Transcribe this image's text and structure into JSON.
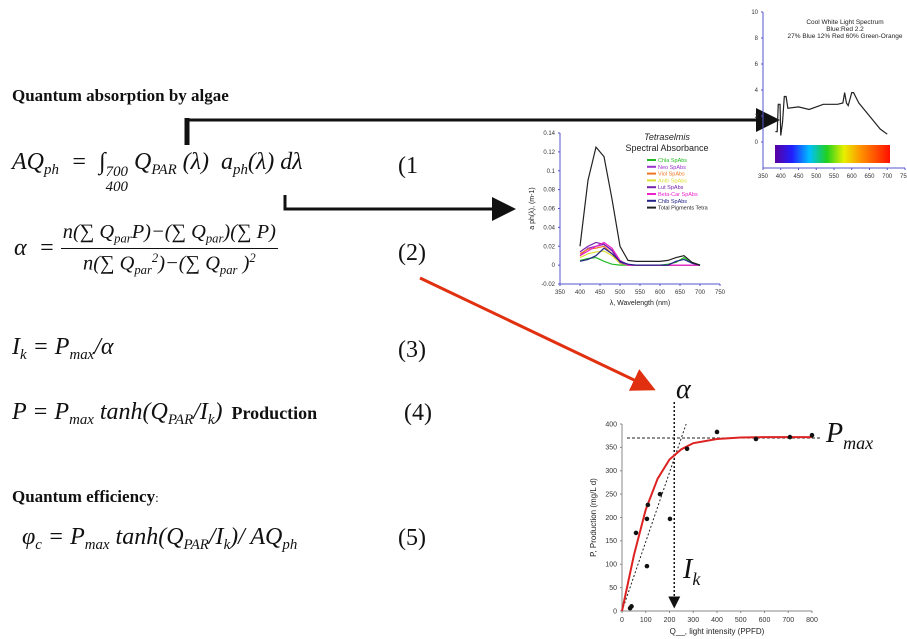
{
  "heading": "Quantum absorption by algae",
  "equations": [
    {
      "tokens": [
        "AQ",
        {
          "sub": "ph"
        },
        "  =  ∫",
        {
          "lim": {
            "sup": "700",
            "sub": "400"
          }
        },
        " Q",
        {
          "sub": "PAR"
        },
        " (λ)  a",
        {
          "sub": "ph"
        },
        "(λ) dλ"
      ],
      "label": "(1"
    },
    {
      "tokens": [
        "α  = "
      ],
      "numerator": [
        "n(∑ Q",
        {
          "sub": "par"
        },
        "P)−(∑ Q",
        {
          "sub": "par"
        },
        ")(∑ P)"
      ],
      "denominator": [
        "n(∑ Q",
        {
          "sub": "par"
        },
        {
          "sup": "2"
        },
        ")−(∑ Q",
        {
          "sub": "par"
        },
        " )",
        {
          "sup": "2"
        }
      ],
      "label": "(2)"
    },
    {
      "tokens": [
        "I",
        {
          "sub": "k"
        },
        " = P",
        {
          "sub": "max"
        },
        "/α"
      ],
      "label": "(3)"
    },
    {
      "tokens": [
        "P = P",
        {
          "sub": "max"
        },
        " tanh(Q",
        {
          "sub": "PAR"
        },
        "/I",
        {
          "sub": "k"
        },
        ")",
        {
          "bold": "  Production"
        }
      ],
      "label": "(4)"
    },
    {
      "tokens": [
        "φ",
        {
          "sub": "c"
        },
        " = P",
        {
          "sub": "max"
        },
        " tanh(Q",
        {
          "sub": "PAR"
        },
        "/I",
        {
          "sub": "k"
        },
        ")/ AQ",
        {
          "sub": "ph"
        }
      ],
      "label": "(5)"
    }
  ],
  "efficiency_heading": {
    "text": "Quantum efficiency",
    "suffix": ":"
  },
  "chart_data": [
    {
      "type": "line",
      "title": "Cool White Light Spectrum",
      "subtitle": [
        "Blue:Red 2.2",
        "27% Blue 12% Red   60% Green-Orange"
      ],
      "x": [
        385,
        390,
        393,
        398,
        400,
        405,
        410,
        415,
        420,
        450,
        480,
        520,
        560,
        575,
        580,
        585,
        590,
        600,
        605,
        620,
        650,
        680,
        700
      ],
      "series": [
        {
          "color": "#222222",
          "values": [
            0.8,
            0.8,
            2.9,
            2.9,
            0.5,
            1.5,
            3.5,
            3.5,
            2.6,
            2.7,
            2.5,
            2.9,
            2.9,
            3,
            3.8,
            3,
            2.8,
            3.8,
            3.8,
            3,
            2,
            1,
            0.6
          ]
        }
      ],
      "xlim": [
        350,
        750
      ],
      "xticks": [
        350,
        400,
        450,
        500,
        550,
        600,
        650,
        700,
        750
      ],
      "ylim": [
        -2,
        10
      ],
      "yticks": [
        0,
        2,
        4,
        6,
        8,
        10
      ],
      "axis_color": "#5555cc"
    },
    {
      "type": "line",
      "title": "Tetraselmis",
      "subtitle": "Spectral Absorbance",
      "xlabel": "λ, Wavelength (nm)",
      "ylabel": "a ph(λ), (m-1)",
      "x": [
        400,
        420,
        440,
        460,
        480,
        500,
        520,
        540,
        560,
        580,
        600,
        620,
        640,
        660,
        680,
        700
      ],
      "series": [
        {
          "name": "Chla SpAbs",
          "color": "#22bb22",
          "values": [
            0.005,
            0.007,
            0.008,
            0.004,
            0.001,
            0,
            0,
            0,
            0,
            0,
            0,
            0.001,
            0.003,
            0.008,
            0.002,
            0
          ]
        },
        {
          "name": "Neo SpAbs",
          "color": "#9933cc",
          "values": [
            0.01,
            0.018,
            0.02,
            0.022,
            0.015,
            0.002,
            0,
            0,
            0,
            0,
            0,
            0,
            0,
            0,
            0,
            0
          ]
        },
        {
          "name": "Viol SpAbs",
          "color": "#ee7722",
          "values": [
            0.012,
            0.017,
            0.018,
            0.02,
            0.012,
            0.002,
            0,
            0,
            0,
            0,
            0,
            0,
            0,
            0,
            0,
            0
          ]
        },
        {
          "name": "Anth SpAbs",
          "color": "#dddd33",
          "values": [
            0.008,
            0.012,
            0.014,
            0.015,
            0.01,
            0.002,
            0,
            0,
            0,
            0,
            0,
            0,
            0,
            0,
            0,
            0
          ]
        },
        {
          "name": "Lut SpAbs",
          "color": "#7722aa",
          "values": [
            0.014,
            0.02,
            0.024,
            0.022,
            0.016,
            0.003,
            0,
            0,
            0,
            0,
            0,
            0,
            0,
            0,
            0,
            0
          ]
        },
        {
          "name": "Beta-Car SpAbs",
          "color": "#ee22cc",
          "values": [
            0.01,
            0.015,
            0.02,
            0.024,
            0.018,
            0.005,
            0,
            0,
            0,
            0,
            0,
            0,
            0,
            0,
            0,
            0
          ]
        },
        {
          "name": "Chlb SpAbs",
          "color": "#222288",
          "values": [
            0.004,
            0.006,
            0.01,
            0.018,
            0.012,
            0.004,
            0.001,
            0,
            0,
            0,
            0,
            0,
            0.004,
            0.006,
            0.002,
            0
          ]
        },
        {
          "name": "Total Pigments Tetra",
          "color": "#222222",
          "values": [
            0.02,
            0.09,
            0.125,
            0.115,
            0.07,
            0.02,
            0.005,
            0.004,
            0.004,
            0.004,
            0.004,
            0.005,
            0.008,
            0.01,
            0.003,
            0
          ]
        }
      ],
      "xlim": [
        350,
        750
      ],
      "xticks": [
        350,
        400,
        450,
        500,
        550,
        600,
        650,
        700,
        750
      ],
      "ylim": [
        -0.02,
        0.14
      ],
      "yticks": [
        -0.02,
        0,
        0.02,
        0.04,
        0.06,
        0.08,
        0.1,
        0.12,
        0.14
      ],
      "axis_color": "#5555cc"
    },
    {
      "type": "scatter",
      "xlabel": "Q__, light intensity (PPFD)",
      "ylabel": "P, Production (mg/L d)",
      "x": [
        34,
        40,
        59,
        105,
        105,
        109,
        160,
        202,
        274,
        400,
        564,
        707,
        800
      ],
      "values": [
        6,
        10,
        167,
        197,
        96,
        227,
        250,
        197,
        347,
        383,
        368,
        372,
        376
      ],
      "color": "#111111",
      "fit": {
        "x": [
          0,
          50,
          100,
          150,
          200,
          250,
          300,
          400,
          500,
          600,
          700,
          800
        ],
        "values": [
          0,
          119,
          217,
          283,
          324,
          346,
          359,
          368,
          371,
          372,
          372,
          372
        ],
        "color": "#dd2222"
      },
      "pmax_line": 370,
      "ik_line": 220,
      "alpha_line": {
        "x": [
          0,
          270
        ],
        "values": [
          0,
          400
        ]
      },
      "annotations": [
        {
          "text": "α"
        },
        {
          "text": "P",
          "sub": "max"
        },
        {
          "text": "I",
          "sub": "k"
        }
      ],
      "xlim": [
        0,
        800
      ],
      "xticks": [
        0,
        100,
        200,
        300,
        400,
        500,
        600,
        700,
        800
      ],
      "ylim": [
        0,
        400
      ],
      "yticks": [
        0,
        50,
        100,
        150,
        200,
        250,
        300,
        350,
        400
      ],
      "axis_color": "#888888"
    }
  ]
}
